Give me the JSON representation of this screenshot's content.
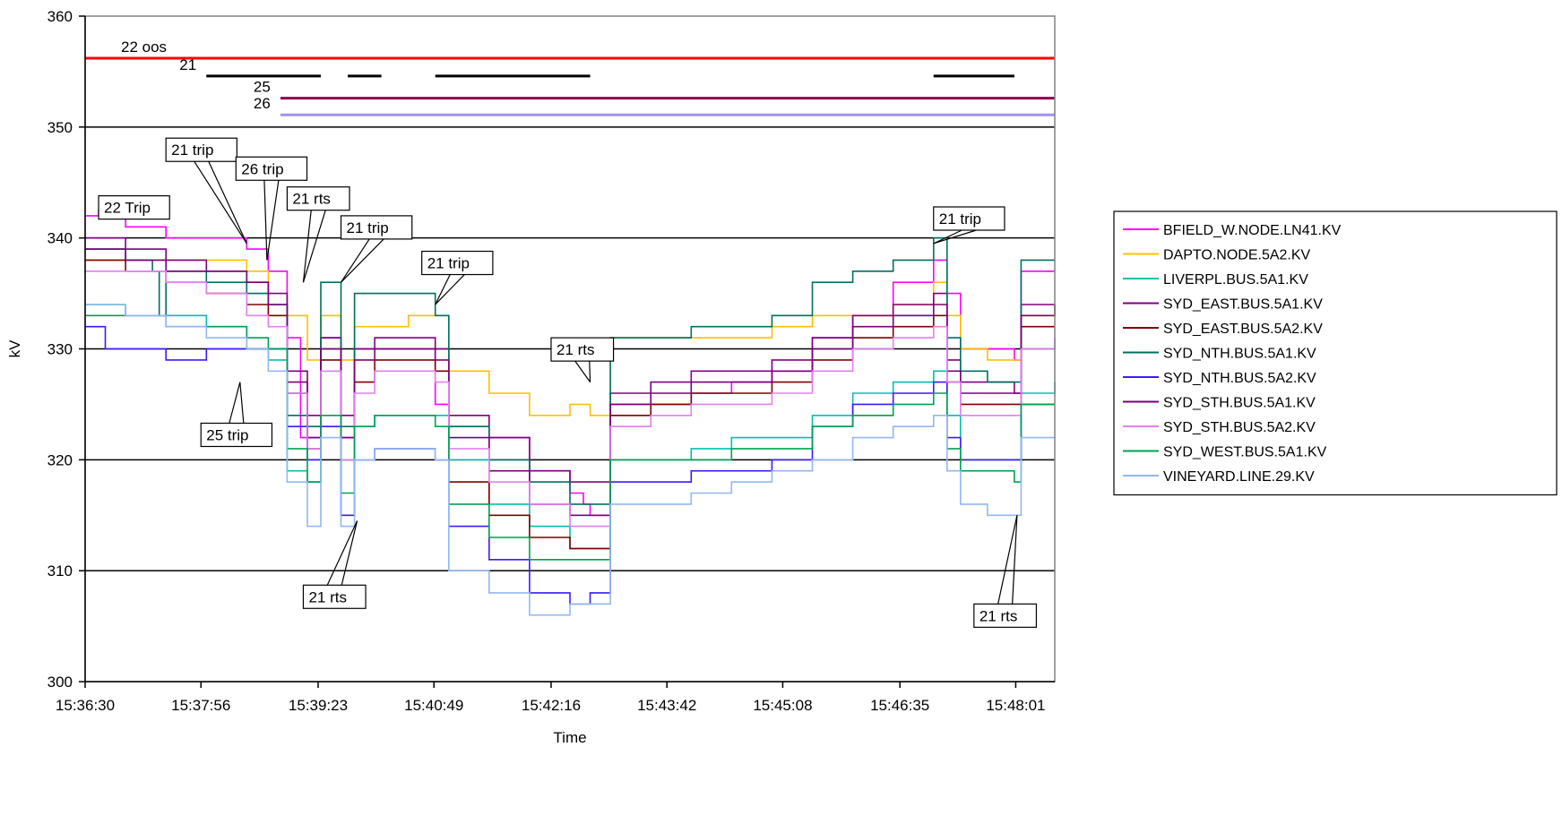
{
  "chart_data": {
    "type": "line",
    "title": "",
    "xlabel": "Time",
    "ylabel": "kV",
    "ylim": [
      300,
      360
    ],
    "yticks": [
      300,
      310,
      320,
      330,
      340,
      350,
      360
    ],
    "gridlines": [
      310,
      320,
      330,
      340,
      350
    ],
    "xlim": [
      "15:36:30",
      "15:48:30"
    ],
    "xticks": [
      "15:36:30",
      "15:37:56",
      "15:39:23",
      "15:40:49",
      "15:42:16",
      "15:43:42",
      "15:45:08",
      "15:46:35",
      "15:48:01"
    ],
    "legend_position": "right",
    "series": [
      {
        "name": "BFIELD_W.NODE.LN41.KV",
        "color": "#ff00ff",
        "x": [
          "15:36:30",
          "15:36:40",
          "15:37:00",
          "15:37:30",
          "15:38:00",
          "15:38:30",
          "15:38:46",
          "15:39:00",
          "15:39:10",
          "15:39:25",
          "15:39:40",
          "15:39:50",
          "15:40:05",
          "15:40:15",
          "15:40:30",
          "15:40:50",
          "15:41:00",
          "15:41:30",
          "15:42:00",
          "15:42:30",
          "15:42:40",
          "15:42:45",
          "15:43:00",
          "15:43:30",
          "15:44:00",
          "15:44:30",
          "15:45:00",
          "15:45:30",
          "15:46:00",
          "15:46:30",
          "15:47:00",
          "15:47:10",
          "15:47:20",
          "15:47:40",
          "15:48:00",
          "15:48:05",
          "15:48:20",
          "15:48:30"
        ],
        "values": [
          342,
          342.5,
          341,
          340,
          340,
          339,
          337,
          331,
          322,
          331,
          322,
          330,
          330,
          330,
          330,
          325,
          323,
          322,
          319,
          317,
          316,
          315,
          325,
          325,
          326,
          327,
          328,
          331,
          333,
          336,
          338,
          335,
          330,
          330,
          329,
          337,
          337,
          337
        ]
      },
      {
        "name": "DAPTO.NODE.5A2.KV",
        "color": "#ffc000",
        "x": [
          "15:36:30",
          "15:37:00",
          "15:37:30",
          "15:38:00",
          "15:38:30",
          "15:38:46",
          "15:39:00",
          "15:39:15",
          "15:39:25",
          "15:39:40",
          "15:39:50",
          "15:40:05",
          "15:40:30",
          "15:40:50",
          "15:41:00",
          "15:41:30",
          "15:42:00",
          "15:42:30",
          "15:42:45",
          "15:43:00",
          "15:43:30",
          "15:44:00",
          "15:44:30",
          "15:45:00",
          "15:45:30",
          "15:46:00",
          "15:46:30",
          "15:47:00",
          "15:47:10",
          "15:47:20",
          "15:47:40",
          "15:48:00",
          "15:48:05",
          "15:48:30"
        ],
        "values": [
          338,
          338,
          338,
          338,
          337,
          333,
          333,
          329,
          333,
          329,
          332,
          332,
          333,
          333,
          328,
          326,
          324,
          325,
          324,
          331,
          331,
          331,
          331,
          332,
          333,
          333,
          334,
          336,
          333,
          330,
          329,
          329,
          333,
          334
        ]
      },
      {
        "name": "LIVERPL.BUS.5A1.KV",
        "color": "#00c0b0",
        "x": [
          "15:36:30",
          "15:37:00",
          "15:37:30",
          "15:38:00",
          "15:38:30",
          "15:38:46",
          "15:39:00",
          "15:39:15",
          "15:39:25",
          "15:39:40",
          "15:39:50",
          "15:40:05",
          "15:40:30",
          "15:40:50",
          "15:41:00",
          "15:41:30",
          "15:42:00",
          "15:42:30",
          "15:42:45",
          "15:43:00",
          "15:43:30",
          "15:44:00",
          "15:44:30",
          "15:45:00",
          "15:45:30",
          "15:46:00",
          "15:46:30",
          "15:47:00",
          "15:47:10",
          "15:47:20",
          "15:47:40",
          "15:48:00",
          "15:48:05",
          "15:48:30"
        ],
        "values": [
          334,
          333,
          333,
          332,
          330,
          329,
          319,
          318,
          328,
          320,
          323,
          324,
          324,
          324,
          320,
          316,
          314,
          312,
          312,
          320,
          320,
          321,
          322,
          322,
          324,
          326,
          327,
          328,
          324,
          320,
          320,
          320,
          326,
          327
        ]
      },
      {
        "name": "SYD_EAST.BUS.5A1.KV",
        "color": "#800080",
        "x": [
          "15:36:30",
          "15:37:00",
          "15:37:30",
          "15:38:00",
          "15:38:30",
          "15:38:46",
          "15:39:00",
          "15:39:15",
          "15:39:25",
          "15:39:40",
          "15:39:50",
          "15:40:05",
          "15:40:30",
          "15:40:50",
          "15:41:00",
          "15:41:30",
          "15:42:00",
          "15:42:30",
          "15:42:45",
          "15:43:00",
          "15:43:30",
          "15:44:00",
          "15:44:30",
          "15:45:00",
          "15:45:30",
          "15:46:00",
          "15:46:30",
          "15:47:00",
          "15:47:10",
          "15:47:20",
          "15:47:40",
          "15:48:00",
          "15:48:05",
          "15:48:30"
        ],
        "values": [
          340,
          339,
          338,
          337,
          336,
          335,
          328,
          324,
          331,
          324,
          330,
          331,
          331,
          330,
          324,
          322,
          319,
          318,
          318,
          326,
          327,
          328,
          328,
          329,
          331,
          333,
          334,
          335,
          329,
          327,
          327,
          326,
          334,
          334
        ]
      },
      {
        "name": "SYD_EAST.BUS.5A2.KV",
        "color": "#800000",
        "x": [
          "15:36:30",
          "15:37:00",
          "15:37:30",
          "15:38:00",
          "15:38:30",
          "15:38:46",
          "15:39:00",
          "15:39:15",
          "15:39:25",
          "15:39:40",
          "15:39:50",
          "15:40:05",
          "15:40:30",
          "15:40:50",
          "15:41:00",
          "15:41:30",
          "15:42:00",
          "15:42:30",
          "15:42:45",
          "15:43:00",
          "15:43:30",
          "15:44:00",
          "15:44:30",
          "15:45:00",
          "15:45:30",
          "15:46:00",
          "15:46:30",
          "15:47:00",
          "15:47:10",
          "15:47:20",
          "15:47:40",
          "15:48:00",
          "15:48:05",
          "15:48:30"
        ],
        "values": [
          338,
          337,
          336,
          335,
          334,
          333,
          326,
          321,
          329,
          320,
          327,
          329,
          329,
          328,
          318,
          315,
          313,
          312,
          312,
          324,
          325,
          326,
          326,
          327,
          329,
          331,
          332,
          333,
          327,
          325,
          325,
          325,
          332,
          332
        ]
      },
      {
        "name": "SYD_NTH.BUS.5A1.KV",
        "color": "#007060",
        "x": [
          "15:36:30",
          "15:37:00",
          "15:37:20",
          "15:37:25",
          "15:37:30",
          "15:38:00",
          "15:38:30",
          "15:38:46",
          "15:39:00",
          "15:39:15",
          "15:39:25",
          "15:39:40",
          "15:39:50",
          "15:40:05",
          "15:40:30",
          "15:40:50",
          "15:41:00",
          "15:41:30",
          "15:42:00",
          "15:42:30",
          "15:42:45",
          "15:43:00",
          "15:43:30",
          "15:44:00",
          "15:44:30",
          "15:45:00",
          "15:45:30",
          "15:46:00",
          "15:46:30",
          "15:47:00",
          "15:47:10",
          "15:47:20",
          "15:47:40",
          "15:48:00",
          "15:48:05",
          "15:48:30"
        ],
        "values": [
          339,
          338,
          337,
          333,
          337,
          336,
          335,
          334,
          324,
          323,
          336,
          323,
          335,
          335,
          335,
          333,
          323,
          320,
          318,
          316,
          316,
          331,
          331,
          332,
          332,
          333,
          336,
          337,
          338,
          340,
          331,
          328,
          327,
          327,
          338,
          338
        ]
      },
      {
        "name": "SYD_NTH.BUS.5A2.KV",
        "color": "#3a1aff",
        "x": [
          "15:36:30",
          "15:36:45",
          "15:37:00",
          "15:37:30",
          "15:38:00",
          "15:38:30",
          "15:38:46",
          "15:39:00",
          "15:39:15",
          "15:39:25",
          "15:39:40",
          "15:39:50",
          "15:40:05",
          "15:40:30",
          "15:40:50",
          "15:41:00",
          "15:41:30",
          "15:42:00",
          "15:42:30",
          "15:42:45",
          "15:43:00",
          "15:43:30",
          "15:44:00",
          "15:44:30",
          "15:45:00",
          "15:45:30",
          "15:46:00",
          "15:46:30",
          "15:47:00",
          "15:47:10",
          "15:47:20",
          "15:47:40",
          "15:48:00",
          "15:48:05",
          "15:48:30"
        ],
        "values": [
          332,
          330,
          330,
          329,
          330,
          330,
          330,
          323,
          320,
          323,
          315,
          320,
          321,
          321,
          320,
          314,
          311,
          308,
          307,
          308,
          318,
          318,
          319,
          319,
          320,
          323,
          325,
          326,
          327,
          322,
          320,
          320,
          320,
          325,
          325
        ]
      },
      {
        "name": "SYD_STH.BUS.5A1.KV",
        "color": "#7a007a",
        "x": [
          "15:36:30",
          "15:37:00",
          "15:37:30",
          "15:38:00",
          "15:38:30",
          "15:38:46",
          "15:39:00",
          "15:39:15",
          "15:39:25",
          "15:39:40",
          "15:39:50",
          "15:40:05",
          "15:40:30",
          "15:40:50",
          "15:41:00",
          "15:41:30",
          "15:42:00",
          "15:42:30",
          "15:42:45",
          "15:43:00",
          "15:43:30",
          "15:44:00",
          "15:44:30",
          "15:45:00",
          "15:45:30",
          "15:46:00",
          "15:46:30",
          "15:47:00",
          "15:47:10",
          "15:47:20",
          "15:47:40",
          "15:48:00",
          "15:48:05",
          "15:48:30"
        ],
        "values": [
          339,
          338,
          337,
          337,
          336,
          334,
          327,
          322,
          330,
          322,
          329,
          330,
          330,
          329,
          322,
          319,
          316,
          315,
          315,
          325,
          326,
          327,
          327,
          328,
          330,
          332,
          333,
          334,
          328,
          326,
          326,
          326,
          333,
          334
        ]
      },
      {
        "name": "SYD_STH.BUS.5A2.KV",
        "color": "#e080f0",
        "x": [
          "15:36:30",
          "15:37:00",
          "15:37:30",
          "15:38:00",
          "15:38:30",
          "15:38:46",
          "15:39:00",
          "15:39:15",
          "15:39:25",
          "15:39:40",
          "15:39:50",
          "15:40:05",
          "15:40:30",
          "15:40:50",
          "15:41:00",
          "15:41:30",
          "15:42:00",
          "15:42:30",
          "15:42:45",
          "15:43:00",
          "15:43:30",
          "15:44:00",
          "15:44:30",
          "15:45:00",
          "15:45:30",
          "15:46:00",
          "15:46:30",
          "15:47:00",
          "15:47:10",
          "15:47:20",
          "15:47:40",
          "15:48:00",
          "15:48:05",
          "15:48:30"
        ],
        "values": [
          337,
          337,
          336,
          335,
          333,
          332,
          326,
          321,
          328,
          320,
          326,
          328,
          328,
          327,
          321,
          318,
          316,
          314,
          314,
          323,
          324,
          325,
          325,
          326,
          328,
          330,
          331,
          332,
          327,
          324,
          324,
          324,
          330,
          331
        ]
      },
      {
        "name": "SYD_WEST.BUS.5A1.KV",
        "color": "#00a050",
        "x": [
          "15:36:30",
          "15:37:00",
          "15:37:30",
          "15:38:00",
          "15:38:30",
          "15:38:46",
          "15:39:00",
          "15:39:15",
          "15:39:25",
          "15:39:40",
          "15:39:50",
          "15:40:05",
          "15:40:30",
          "15:40:50",
          "15:41:00",
          "15:41:30",
          "15:42:00",
          "15:42:30",
          "15:42:45",
          "15:43:00",
          "15:43:30",
          "15:44:00",
          "15:44:30",
          "15:45:00",
          "15:45:30",
          "15:46:00",
          "15:46:30",
          "15:47:00",
          "15:47:10",
          "15:47:20",
          "15:47:40",
          "15:48:00",
          "15:48:05",
          "15:48:30"
        ],
        "values": [
          333,
          333,
          332,
          332,
          331,
          330,
          321,
          318,
          324,
          317,
          323,
          324,
          324,
          323,
          316,
          313,
          311,
          311,
          311,
          320,
          320,
          320,
          321,
          321,
          323,
          324,
          325,
          326,
          321,
          319,
          319,
          318,
          325,
          325
        ]
      },
      {
        "name": "VINEYARD.LINE.29.KV",
        "color": "#90b8f0",
        "x": [
          "15:36:30",
          "15:37:00",
          "15:37:30",
          "15:38:00",
          "15:38:30",
          "15:38:46",
          "15:39:00",
          "15:39:15",
          "15:39:25",
          "15:39:40",
          "15:39:50",
          "15:40:05",
          "15:40:30",
          "15:40:50",
          "15:41:00",
          "15:41:30",
          "15:42:00",
          "15:42:30",
          "15:42:45",
          "15:43:00",
          "15:43:30",
          "15:44:00",
          "15:44:30",
          "15:45:00",
          "15:45:30",
          "15:46:00",
          "15:46:30",
          "15:47:00",
          "15:47:10",
          "15:47:20",
          "15:47:40",
          "15:48:00",
          "15:48:05",
          "15:48:30"
        ],
        "values": [
          334,
          333,
          332,
          331,
          330,
          328,
          318,
          314,
          322,
          314,
          320,
          321,
          321,
          320,
          310,
          308,
          306,
          307,
          307,
          316,
          316,
          317,
          318,
          319,
          320,
          322,
          323,
          324,
          319,
          316,
          315,
          315,
          322,
          322
        ]
      }
    ],
    "status_bars": [
      {
        "label": "22 oos",
        "color": "#ff0000",
        "level": 356.2,
        "segments": [
          [
            "15:36:30",
            "15:48:30"
          ]
        ]
      },
      {
        "label": "21",
        "color": "#000000",
        "level": 354.6,
        "segments": [
          [
            "15:38:00",
            "15:39:25"
          ],
          [
            "15:39:45",
            "15:40:10"
          ],
          [
            "15:40:50",
            "15:42:45"
          ],
          [
            "15:47:00",
            "15:48:00"
          ]
        ]
      },
      {
        "label": "25",
        "color": "#8b004b",
        "level": 352.6,
        "segments": [
          [
            "15:38:55",
            "15:48:30"
          ]
        ]
      },
      {
        "label": "26",
        "color": "#a090f0",
        "level": 351.1,
        "segments": [
          [
            "15:38:55",
            "15:48:30"
          ]
        ]
      }
    ],
    "annotations": [
      {
        "text": "22 Trip",
        "box_at": [
          "15:36:40",
          343.8
        ],
        "point": [
          "15:36:40",
          342
        ]
      },
      {
        "text": "21 trip",
        "box_at": [
          "15:37:30",
          349.0
        ],
        "point": [
          "15:38:30",
          339.5
        ]
      },
      {
        "text": "26 trip",
        "box_at": [
          "15:38:22",
          347.3
        ],
        "point": [
          "15:38:45",
          338
        ]
      },
      {
        "text": "21 rts",
        "box_at": [
          "15:39:00",
          344.6
        ],
        "point": [
          "15:39:12",
          336
        ]
      },
      {
        "text": "21 trip",
        "box_at": [
          "15:39:40",
          342.0
        ],
        "point": [
          "15:39:40",
          336
        ]
      },
      {
        "text": "21 trip",
        "box_at": [
          "15:40:40",
          338.8
        ],
        "point": [
          "15:40:50",
          334
        ]
      },
      {
        "text": "21 rts",
        "box_at": [
          "15:42:16",
          331.0
        ],
        "point": [
          "15:42:45",
          327
        ]
      },
      {
        "text": "25 trip",
        "box_at": [
          "15:37:56",
          323.3
        ],
        "point": [
          "15:38:25",
          327
        ]
      },
      {
        "text": "21 rts",
        "box_at": [
          "15:39:12",
          308.7
        ],
        "point": [
          "15:39:52",
          314.5
        ]
      },
      {
        "text": "21 trip",
        "box_at": [
          "15:47:00",
          342.8
        ],
        "point": [
          "15:47:00",
          339.5
        ]
      },
      {
        "text": "21 rts",
        "box_at": [
          "15:47:30",
          307.0
        ],
        "point": [
          "15:48:02",
          315
        ]
      }
    ]
  }
}
